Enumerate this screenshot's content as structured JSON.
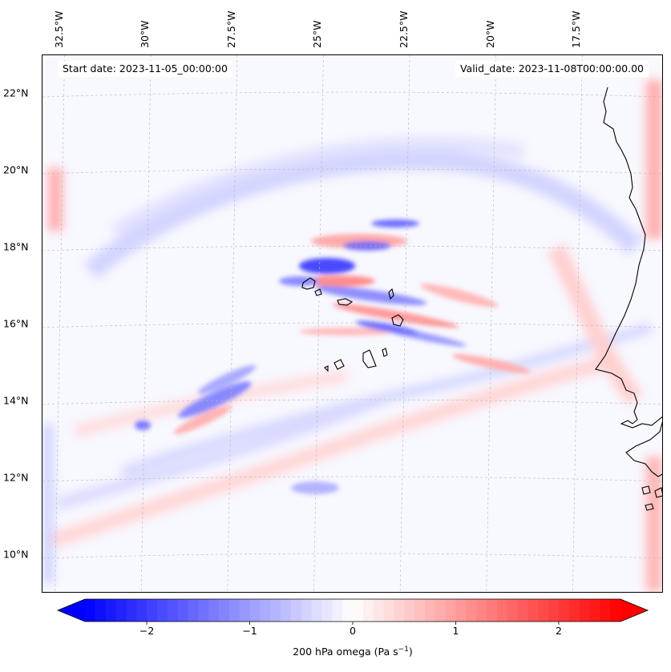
{
  "map": {
    "variable": "200 hPa omega",
    "units_prefix": "200 hPa omega (Pa s",
    "units_exponent": "−1",
    "units_suffix": ")",
    "start_date_text": "Start date: 2023-11-05_00:00:00",
    "valid_date_text": "Valid_date: 2023-11-08T00:00:00.00",
    "lon_range": [
      -33,
      -15
    ],
    "lat_range": [
      9,
      23
    ],
    "lon_labels": [
      "32.5°W",
      "30°W",
      "27.5°W",
      "25°W",
      "22.5°W",
      "20°W",
      "17.5°W"
    ],
    "lon_values": [
      -32.5,
      -30,
      -27.5,
      -25,
      -22.5,
      -20,
      -17.5
    ],
    "lat_labels": [
      "22°N",
      "20°N",
      "18°N",
      "16°N",
      "14°N",
      "12°N",
      "10°N"
    ],
    "lat_values": [
      22,
      20,
      18,
      16,
      14,
      12,
      10
    ],
    "features": [
      "Cabo Verde islands",
      "West African coastline (Senegal, Gambia, Guinea-Bissau)"
    ]
  },
  "colorbar": {
    "min": -2.6,
    "max": 2.6,
    "tick_values": [
      -2,
      -1,
      0,
      1,
      2
    ],
    "tick_labels": [
      "−2",
      "−1",
      "0",
      "1",
      "2"
    ],
    "cmap": "bwr",
    "extend": "both",
    "color_low": "#0000ff",
    "color_mid": "#ffffff",
    "color_high": "#ff0000"
  },
  "chart_data": {
    "type": "heatmap",
    "title": "",
    "field": "200 hPa omega",
    "unit": "Pa s^-1",
    "xlabel": "",
    "ylabel": "",
    "x_range": [
      -33,
      -15
    ],
    "y_range": [
      9,
      23
    ],
    "value_range": [
      -2.6,
      2.6
    ]
  }
}
